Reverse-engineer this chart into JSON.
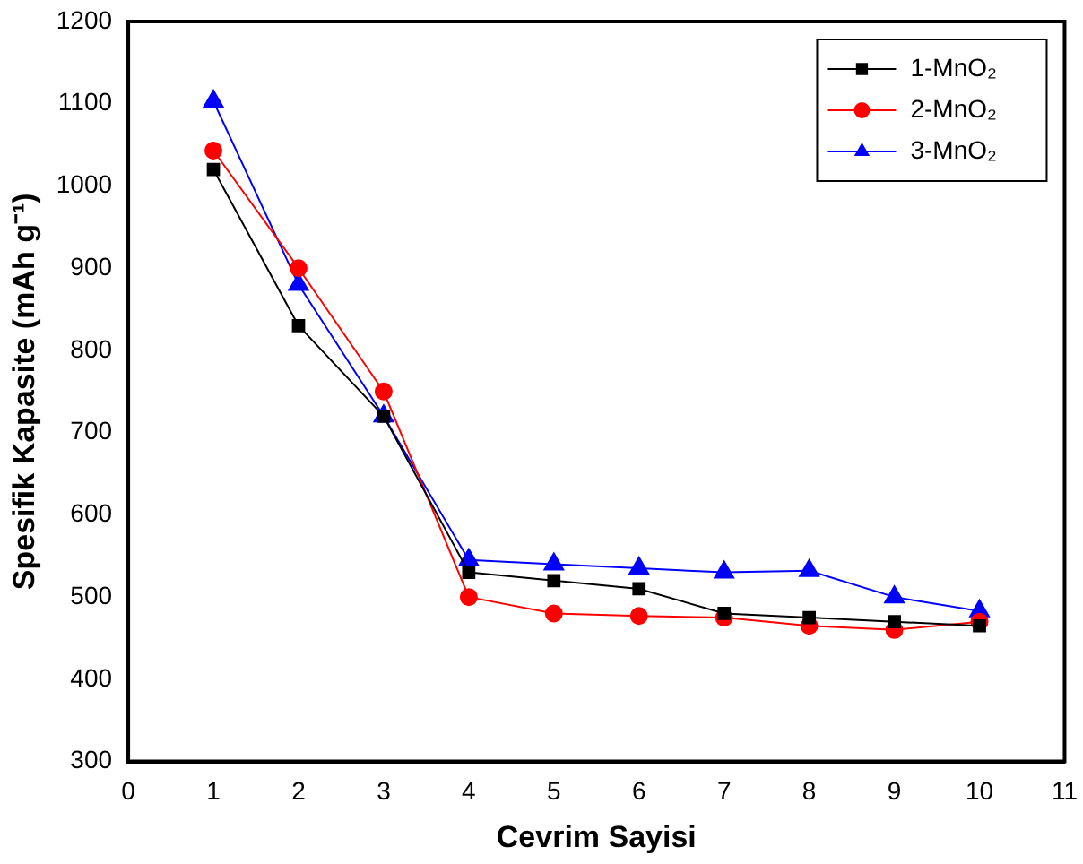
{
  "chart_data": {
    "type": "line",
    "xlabel": "Cevrim Sayisi",
    "ylabel": "Spesifik Kapasite (mAh g⁻¹)",
    "x": [
      1,
      2,
      3,
      4,
      5,
      6,
      7,
      8,
      9,
      10
    ],
    "xlim": [
      0,
      11
    ],
    "xticks": [
      0,
      1,
      2,
      3,
      4,
      5,
      6,
      7,
      8,
      9,
      10,
      11
    ],
    "ylim": [
      300,
      1200
    ],
    "yticks": [
      300,
      400,
      500,
      600,
      700,
      800,
      900,
      1000,
      1100,
      1200
    ],
    "grid": false,
    "legend": "top right",
    "line_style": "solid",
    "series": [
      {
        "name": "1-MnO₂",
        "color": "#000000",
        "marker": "square",
        "values": [
          1020,
          830,
          720,
          530,
          520,
          510,
          480,
          475,
          470,
          465
        ]
      },
      {
        "name": "2-MnO₂",
        "color": "#ff0000",
        "marker": "circle",
        "values": [
          1043,
          900,
          750,
          500,
          480,
          477,
          475,
          465,
          460,
          470
        ]
      },
      {
        "name": "3-MnO₂",
        "color": "#0000ff",
        "marker": "triangle",
        "values": [
          1103,
          880,
          720,
          545,
          540,
          535,
          530,
          532,
          500,
          483
        ]
      }
    ]
  }
}
